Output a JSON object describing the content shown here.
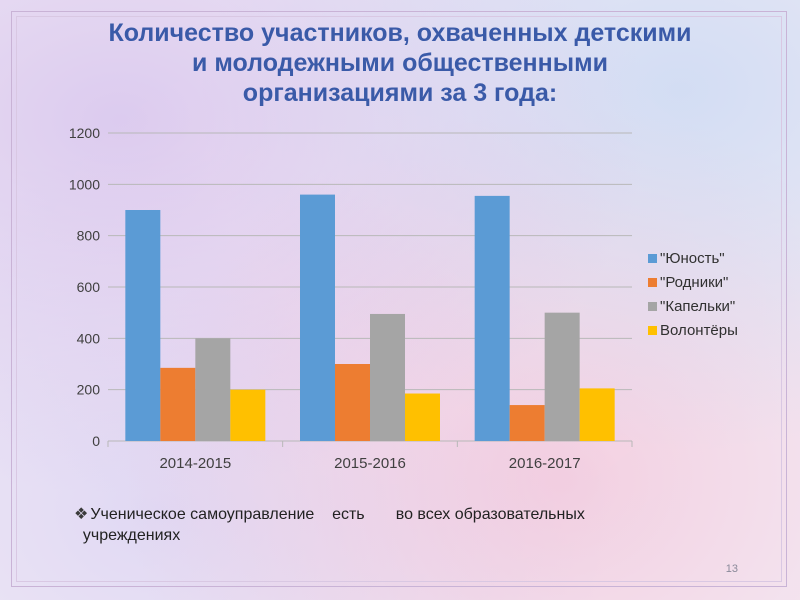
{
  "slide": {
    "title_line1": "Количество участников, охваченных детскими",
    "title_line2": "и молодежными общественными",
    "title_line3": "организациями за 3 года:",
    "note_bullet": "❖",
    "note_text": "Ученическое самоуправление    есть       во всех образовательных\n  учреждениях",
    "page_number": "13"
  },
  "chart_data": {
    "type": "bar",
    "categories": [
      "2014-2015",
      "2015-2016",
      "2016-2017"
    ],
    "series": [
      {
        "name": "\"Юность\"",
        "color": "#5b9bd5",
        "values": [
          900,
          960,
          955
        ]
      },
      {
        "name": " \"Родники\"",
        "color": "#ed7d31",
        "values": [
          285,
          300,
          140
        ]
      },
      {
        "name": "\"Капельки\"",
        "color": "#a5a5a5",
        "values": [
          400,
          495,
          500
        ]
      },
      {
        "name": "Волонтёры",
        "color": "#ffc000",
        "values": [
          200,
          185,
          205
        ]
      }
    ],
    "ylim": [
      0,
      1200
    ],
    "yticks": [
      0,
      200,
      400,
      600,
      800,
      1000,
      1200
    ],
    "grid": true,
    "legend_position": "right"
  }
}
